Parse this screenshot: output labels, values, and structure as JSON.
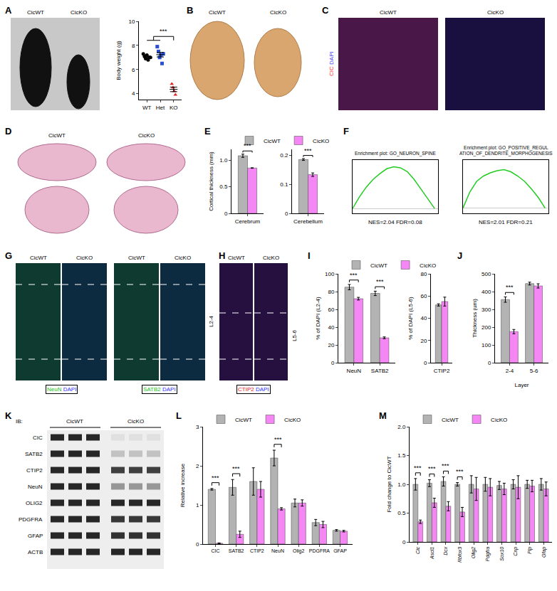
{
  "chart_data": [
    {
      "panel": "A",
      "type": "scatter",
      "photo_labels": [
        "CicWT",
        "CicKO"
      ],
      "y_label": "Body weight (g)",
      "ylim": [
        3.5,
        10
      ],
      "yticks": [
        4,
        6,
        8,
        10
      ],
      "groups": [
        {
          "category": "WT",
          "color": "#000000",
          "marker": "circle",
          "values": [
            7.3,
            7.1,
            6.9,
            7.2,
            6.8,
            7.0,
            7.0
          ],
          "mean": 7.04,
          "error": 0.07
        },
        {
          "category": "Het",
          "color": "#2a4fd6",
          "marker": "square",
          "values": [
            7.9,
            7.5,
            7.0,
            7.2,
            6.5,
            7.3
          ],
          "mean": 7.23,
          "error": 0.19
        },
        {
          "category": "KO",
          "color": "#e02020",
          "marker": "triangle-up",
          "values": [
            4.8,
            4.5,
            4.2,
            3.9
          ],
          "mean": 4.35,
          "error": 0.19
        }
      ],
      "significance": {
        "groups": [
          "WT",
          "Het"
        ],
        "vs": "KO",
        "label": "***"
      }
    },
    {
      "panel": "E",
      "type": "bar",
      "legend": "top",
      "subplots": [
        {
          "categories": [
            "Cerebrum"
          ],
          "y_label": "Cortical thickness (mm)",
          "ylim": [
            0,
            1.2
          ],
          "yticks": [
            0,
            0.5,
            {
              "value": 1,
              "label": "1.0"
            }
          ],
          "series": [
            {
              "name": "CicWT",
              "color": "#b3b3b3",
              "values": [
                1.08
              ],
              "errors": [
                0.03
              ]
            },
            {
              "name": "CicKO",
              "color": "#f587f5",
              "values": [
                0.85
              ],
              "errors": [
                0.005
              ]
            }
          ],
          "significance": [
            {
              "category": "Cerebrum",
              "label": "***"
            }
          ]
        },
        {
          "categories": [
            "Cerebellum"
          ],
          "ylim": [
            0,
            0.22
          ],
          "yticks": [
            0,
            0.1,
            0.2
          ],
          "series": [
            {
              "name": "CicWT",
              "color": "#b3b3b3",
              "values": [
                0.185
              ],
              "errors": [
                0.003
              ]
            },
            {
              "name": "CicKO",
              "color": "#f587f5",
              "values": [
                0.133
              ],
              "errors": [
                0.006
              ]
            }
          ],
          "significance": [
            {
              "category": "Cerebellum",
              "label": "***"
            }
          ]
        }
      ]
    },
    {
      "panel": "F",
      "type": "line",
      "tick_labels": false,
      "subplots": [
        {
          "title": "Enrichment plot: GO_NEURON_SPINE",
          "caption": "NES=2.04 FDR=0.08",
          "color": "#22cc22",
          "xlim": [
            0,
            12500
          ],
          "ylim": [
            -0.05,
            0.5
          ],
          "x": [
            0,
            1000,
            2000,
            3000,
            4000,
            5000,
            6000,
            7000,
            8000,
            9000,
            10000,
            11000,
            12000
          ],
          "values": [
            0,
            0.12,
            0.22,
            0.3,
            0.36,
            0.41,
            0.43,
            0.42,
            0.38,
            0.3,
            0.2,
            0.1,
            0.0
          ]
        },
        {
          "title": "Enrichment plot: GO_POSITIVE_REGULATION_OF_DENDRITE_MORPHOGENESIS",
          "caption": "NES=2.01 FDR=0.21",
          "color": "#22cc22",
          "xlim": [
            0,
            12500
          ],
          "ylim": [
            -0.05,
            0.45
          ],
          "x": [
            0,
            1000,
            2000,
            3000,
            4000,
            5000,
            6000,
            7000,
            8000,
            9000,
            10000,
            11000,
            12000
          ],
          "values": [
            0,
            0.15,
            0.25,
            0.3,
            0.33,
            0.35,
            0.36,
            0.34,
            0.3,
            0.25,
            0.18,
            0.1,
            0.0
          ]
        }
      ]
    },
    {
      "panel": "I",
      "type": "bar",
      "legend": "top",
      "subplots": [
        {
          "categories": [
            "NeuN",
            "SATB2"
          ],
          "y_label": "% of DAPI (L2-4)",
          "ylim": [
            0,
            100
          ],
          "yticks": [
            0,
            20,
            40,
            60,
            80,
            100
          ],
          "series": [
            {
              "name": "CicWT",
              "color": "#b3b3b3",
              "values": [
                85,
                78
              ],
              "errors": [
                3,
                2.5
              ]
            },
            {
              "name": "CicKO",
              "color": "#f587f5",
              "values": [
                72,
                28
              ],
              "errors": [
                1.5,
                1
              ]
            }
          ],
          "significance": [
            {
              "category": "NeuN",
              "label": "***"
            },
            {
              "category": "SATB2",
              "label": "***"
            }
          ]
        },
        {
          "categories": [
            "CTIP2"
          ],
          "y_label": "% of DAPI (L5-6)",
          "ylim": [
            0,
            80
          ],
          "yticks": [
            0,
            20,
            40,
            60,
            80
          ],
          "series": [
            {
              "name": "CicWT",
              "color": "#b3b3b3",
              "values": [
                52
              ],
              "errors": [
                1
              ]
            },
            {
              "name": "CicKO",
              "color": "#f587f5",
              "values": [
                55
              ],
              "errors": [
                4
              ]
            }
          ]
        }
      ]
    },
    {
      "panel": "J",
      "type": "bar",
      "subplots": [
        {
          "categories": [
            "2-4",
            "5-6"
          ],
          "x_label": "Layer",
          "y_label": "Thickness (um)",
          "ylim": [
            0,
            500
          ],
          "yticks": [
            0,
            100,
            200,
            300,
            400,
            500
          ],
          "series": [
            {
              "name": "CicWT",
              "color": "#b3b3b3",
              "values": [
                355,
                445
              ],
              "errors": [
                15,
                8
              ]
            },
            {
              "name": "CicKO",
              "color": "#f587f5",
              "values": [
                175,
                432
              ],
              "errors": [
                12,
                12
              ]
            }
          ],
          "significance": [
            {
              "category": "2-4",
              "label": "***"
            }
          ]
        }
      ]
    },
    {
      "panel": "L",
      "type": "bar",
      "legend": "top",
      "subplots": [
        {
          "categories": [
            "CIC",
            "SATB2",
            "CTIP2",
            "NeuN",
            "Olig2",
            "PDGFRA",
            "GFAP"
          ],
          "y_label": "Relative increase",
          "ylim": [
            0,
            3
          ],
          "yticks": [
            0,
            1,
            2,
            3
          ],
          "series": [
            {
              "name": "CicWT",
              "color": "#b3b3b3",
              "values": [
                1.4,
                1.45,
                1.6,
                2.2,
                1.05,
                0.55,
                0.35
              ],
              "errors": [
                0.02,
                0.2,
                0.35,
                0.2,
                0.1,
                0.08,
                0.02
              ]
            },
            {
              "name": "CicKO",
              "color": "#f587f5",
              "values": [
                0.02,
                0.25,
                1.4,
                0.9,
                1.05,
                0.5,
                0.33
              ],
              "errors": [
                0.01,
                0.08,
                0.2,
                0.03,
                0.08,
                0.08,
                0.02
              ]
            }
          ],
          "significance": [
            {
              "category": "CIC",
              "label": "***"
            },
            {
              "category": "SATB2",
              "label": "***"
            },
            {
              "category": "NeuN",
              "label": "***"
            }
          ]
        }
      ]
    },
    {
      "panel": "M",
      "type": "bar",
      "legend": "top",
      "subplots": [
        {
          "categories": [
            "Cic",
            "Ascl1",
            "Dcx",
            "Rbfox3",
            "Olig2",
            "Pdgfra",
            "Sox10",
            "Cnp",
            "Plp",
            "Gfap"
          ],
          "y_label": "Fold change to CicWT",
          "ylim": [
            0,
            2
          ],
          "yticks": [
            0,
            0.5,
            {
              "value": 1,
              "label": "1.0"
            },
            1.5,
            {
              "value": 2,
              "label": "2.0"
            }
          ],
          "series": [
            {
              "name": "CicWT",
              "color": "#b3b3b3",
              "values": [
                1.0,
                1.02,
                1.05,
                1.0,
                1.0,
                1.0,
                0.98,
                1.0,
                1.0,
                1.0
              ],
              "errors": [
                0.1,
                0.06,
                0.08,
                0.03,
                0.15,
                0.12,
                0.07,
                0.08,
                0.07,
                0.1
              ]
            },
            {
              "name": "CicKO",
              "color": "#f587f5",
              "values": [
                0.35,
                0.68,
                0.62,
                0.52,
                0.92,
                0.95,
                0.92,
                0.95,
                0.97,
                0.92
              ],
              "errors": [
                0.03,
                0.08,
                0.08,
                0.08,
                0.2,
                0.15,
                0.1,
                0.2,
                0.1,
                0.12
              ]
            }
          ],
          "significance": [
            {
              "category": "Cic",
              "label": "***"
            },
            {
              "category": "Ascl1",
              "label": "***"
            },
            {
              "category": "Dcx",
              "label": "***"
            },
            {
              "category": "Rbfox3",
              "label": "***"
            }
          ]
        }
      ]
    }
  ],
  "images": [
    {
      "panel": "B",
      "labels": [
        "CicWT",
        "CicKO"
      ]
    },
    {
      "panel": "C",
      "labels": [
        "CicWT",
        "CicKO"
      ],
      "stains": [
        [
          {
            "text": "CIC",
            "color": "#ff3030"
          },
          {
            "text": "DAPI",
            "color": "#4040ff"
          }
        ]
      ]
    },
    {
      "panel": "D",
      "labels": [
        "CicWT",
        "CicKO"
      ]
    },
    {
      "panel": "G",
      "labels": [
        "CicWT",
        "CicKO"
      ],
      "stains": [
        [
          {
            "text": "NeuN",
            "color": "#20c020"
          },
          {
            "text": "DAPI",
            "color": "#3030ff"
          }
        ],
        [
          {
            "text": "SATB2",
            "color": "#20c020"
          },
          {
            "text": "DAPI",
            "color": "#3030ff"
          }
        ]
      ],
      "layer": "L2-4"
    },
    {
      "panel": "H",
      "labels": [
        "CicWT",
        "CicKO"
      ],
      "stains": [
        [
          {
            "text": "CTIP2",
            "color": "#e02020"
          },
          {
            "text": "DAPI",
            "color": "#3030ff"
          }
        ]
      ],
      "layer": "L5-6"
    },
    {
      "panel": "K",
      "header": "IB:",
      "labels": [
        "CicWT",
        "CicKO"
      ],
      "rows": [
        "CIC",
        "SATB2",
        "CTIP2",
        "NeuN",
        "OLIG2",
        "PDGFRA",
        "GFAP",
        "ACTB"
      ]
    }
  ]
}
